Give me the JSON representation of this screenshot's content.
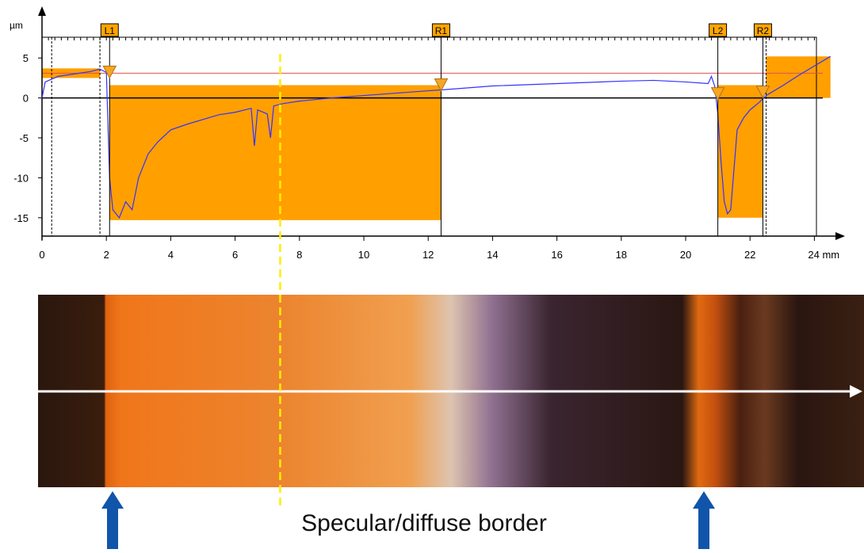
{
  "chart_data": {
    "type": "line",
    "y_label": "µm",
    "xlim": [
      0,
      24.5
    ],
    "ylim": [
      -17.3,
      7.6
    ],
    "xticks": [
      0,
      2,
      4,
      6,
      8,
      10,
      12,
      14,
      16,
      18,
      20,
      22,
      {
        "value": 24,
        "label": "24 mm"
      }
    ],
    "yticks": [
      5,
      0,
      -5,
      -10,
      -15
    ],
    "series": [
      {
        "color": "#3333ff",
        "x": [
          0,
          0.1,
          0.5,
          1,
          1.5,
          1.8,
          2.0,
          2.1,
          2.2,
          2.4,
          2.6,
          2.8,
          3.0,
          3.3,
          3.6,
          4,
          4.5,
          5,
          5.5,
          6,
          6.5,
          6.6,
          6.7,
          7,
          7.1,
          7.2,
          7.5,
          8,
          9,
          10,
          11,
          12,
          12.4,
          14,
          16,
          18,
          19,
          20,
          20.7,
          20.8,
          20.9,
          21.0,
          21.1,
          21.2,
          21.3,
          21.4,
          21.5,
          21.6,
          21.8,
          22,
          22.3,
          22.5,
          23,
          23.5,
          24,
          24.5
        ],
        "values": [
          0,
          2,
          2.7,
          3.0,
          3.3,
          3.6,
          3.2,
          -10,
          -14,
          -15,
          -13,
          -14,
          -10,
          -7,
          -5.5,
          -4,
          -3.3,
          -2.7,
          -2.1,
          -1.8,
          -1.3,
          -6,
          -1.5,
          -2,
          -5,
          -1,
          -0.7,
          -0.4,
          0,
          0.3,
          0.6,
          0.9,
          1.0,
          1.5,
          1.8,
          2.1,
          2.2,
          2.0,
          1.8,
          2.7,
          1.5,
          -2,
          -8,
          -13,
          -14.5,
          -14,
          -9,
          -4,
          -2.5,
          -1.5,
          -0.5,
          0.3,
          1.5,
          2.8,
          4,
          5.2
        ]
      }
    ],
    "regions": [
      {
        "x0": 0,
        "x1": 1.8,
        "y0": 2.5,
        "y1": 3.7,
        "color": "#ff9f00"
      },
      {
        "x0": 2.1,
        "x1": 12.4,
        "y0": -15.3,
        "y1": 1.6,
        "color": "#ff9f00"
      },
      {
        "x0": 21.0,
        "x1": 22.4,
        "y0": -15.0,
        "y1": 1.6,
        "color": "#ff9f00"
      },
      {
        "x0": 22.5,
        "x1": 24.5,
        "y0": 0,
        "y1": 5.2,
        "color": "#ff9f00"
      }
    ],
    "reference_y": 3.1,
    "dashed_x": [
      0.3,
      1.8,
      22.5
    ],
    "markers": [
      {
        "label": "L1",
        "x": 2.1,
        "y": 3.0
      },
      {
        "label": "R1",
        "x": 12.4,
        "y": 1.4
      },
      {
        "label": "L2",
        "x": 21.0,
        "y": 0.3
      },
      {
        "label": "R2",
        "x": 22.4,
        "y": 0.5
      }
    ],
    "border_x": 7.4,
    "annotation": "Specular/diffuse border"
  }
}
